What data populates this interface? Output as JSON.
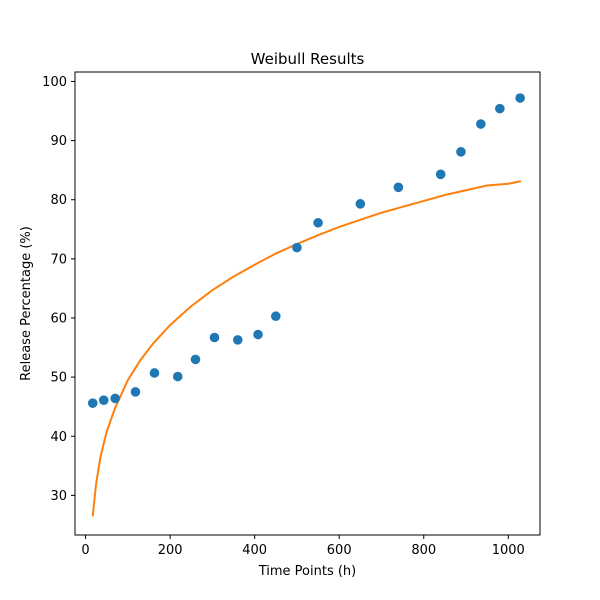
{
  "chart_data": {
    "type": "scatter",
    "title": "Weibull Results",
    "xlabel": "Time Points (h)",
    "ylabel": "Release Percentage (%)",
    "xlim": [
      -25,
      1075
    ],
    "ylim": [
      23.3,
      101.6
    ],
    "xticks": [
      0,
      200,
      400,
      600,
      800,
      1000
    ],
    "yticks": [
      30,
      40,
      50,
      60,
      70,
      80,
      90,
      100
    ],
    "grid": false,
    "series": [
      {
        "type": "scatter",
        "color": "#1f77b4",
        "x": [
          17,
          43,
          70,
          118,
          163,
          218,
          260,
          305,
          360,
          408,
          450,
          500,
          550,
          650,
          740,
          840,
          888,
          935,
          980,
          1028
        ],
        "y": [
          45.6,
          46.1,
          46.4,
          47.5,
          50.7,
          50.1,
          53.0,
          56.7,
          56.3,
          57.2,
          60.3,
          71.9,
          76.1,
          79.3,
          82.1,
          84.3,
          88.1,
          92.8,
          95.4,
          97.2
        ]
      },
      {
        "type": "line",
        "color": "#ff7f0e",
        "x": [
          17,
          25,
          35,
          50,
          70,
          100,
          130,
          160,
          200,
          250,
          300,
          350,
          400,
          450,
          500,
          550,
          600,
          650,
          700,
          750,
          800,
          850,
          900,
          950,
          1000,
          1028
        ],
        "y": [
          26.6,
          32.0,
          36.4,
          40.8,
          44.8,
          49.5,
          52.9,
          55.7,
          58.8,
          62.0,
          64.7,
          67.0,
          69.0,
          70.9,
          72.5,
          74.0,
          75.4,
          76.6,
          77.8,
          78.8,
          79.8,
          80.8,
          81.6,
          82.4,
          82.7,
          83.1
        ]
      }
    ]
  }
}
